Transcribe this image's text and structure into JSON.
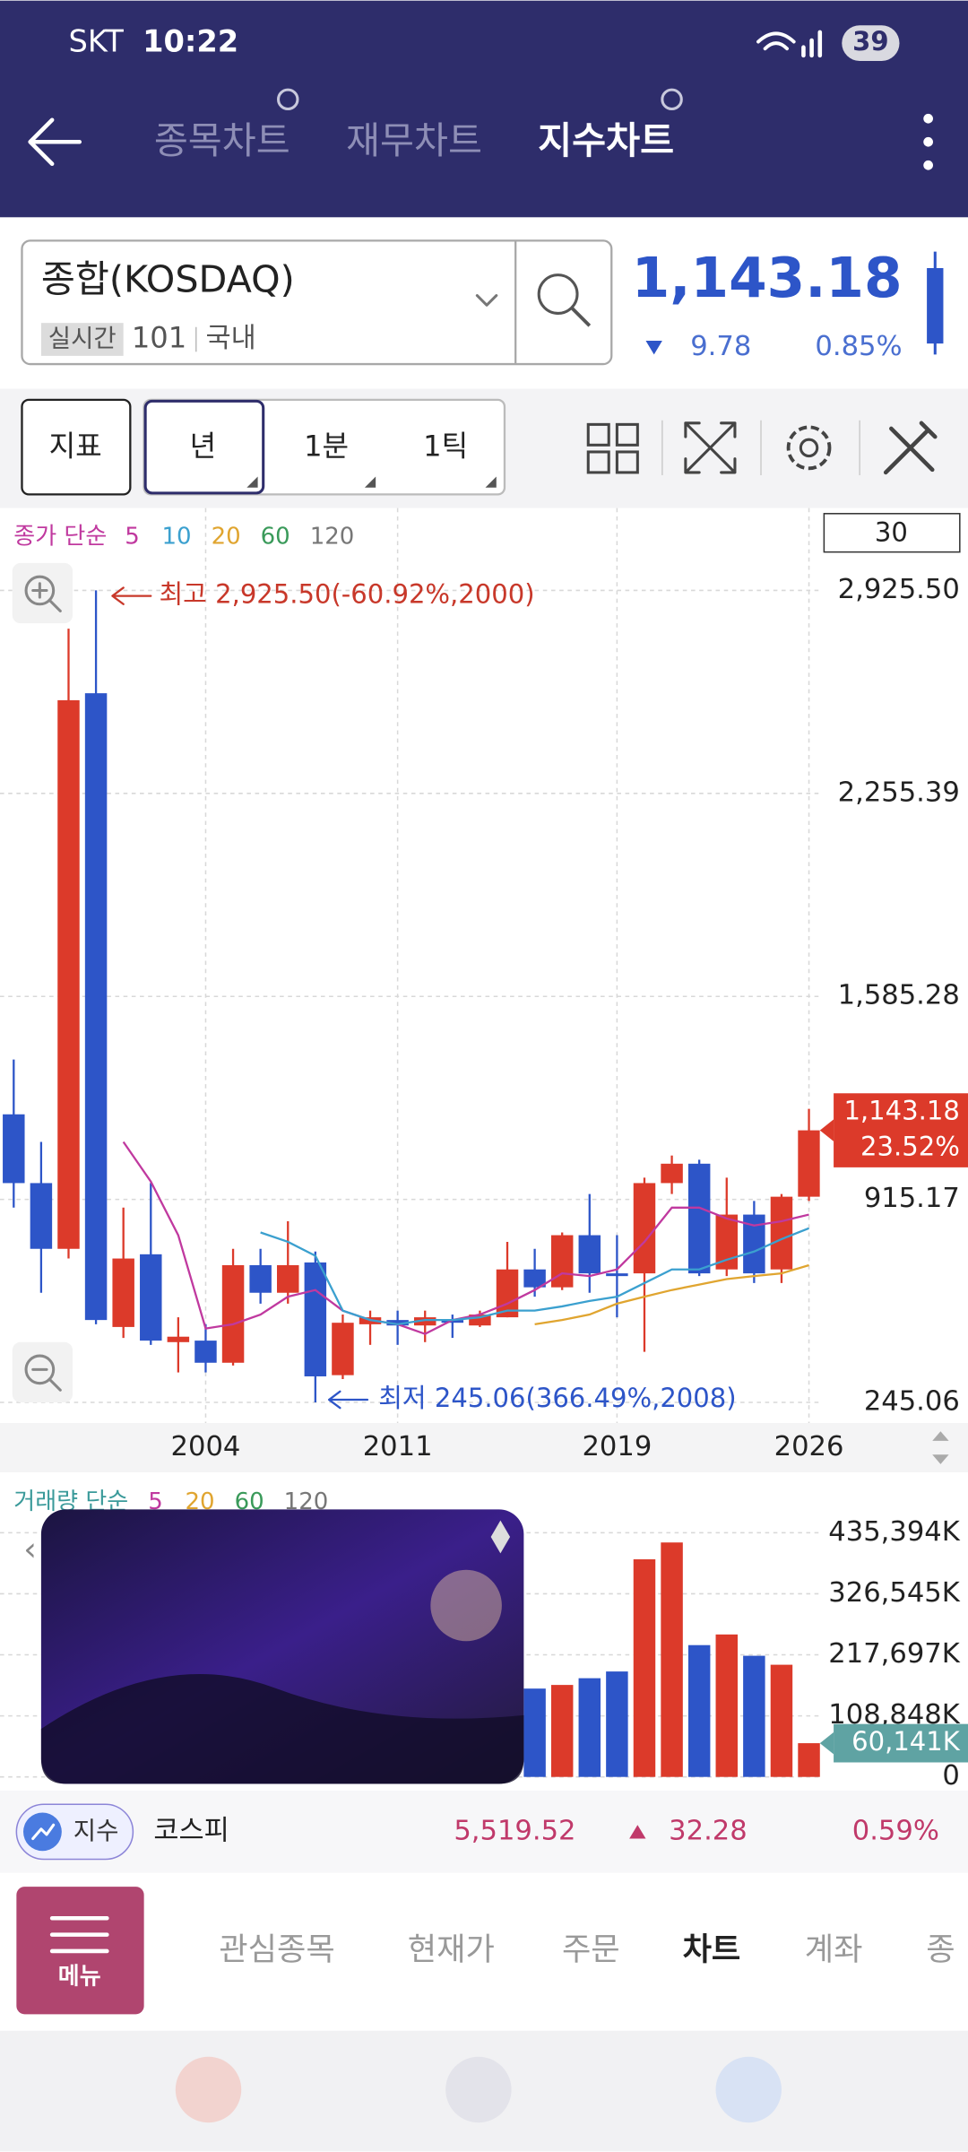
{
  "status_bar": {
    "carrier": "SKT",
    "time": "10:22",
    "battery": "39"
  },
  "nav": {
    "tabs": [
      "종목차트",
      "재무차트",
      "지수차트"
    ]
  },
  "quote": {
    "name": "종합(KOSDAQ)",
    "tag": "실시간",
    "code": "101",
    "market": "국내",
    "price": "1,143.18",
    "change": "9.78",
    "change_pct": "0.85%"
  },
  "toolbar": {
    "buttons": [
      "지표",
      "년",
      "1분",
      "1틱"
    ],
    "count": "30"
  },
  "chart_data": {
    "type": "candlestick",
    "legend_title": "종가 단순",
    "categories": [
      null,
      null,
      null,
      null,
      null,
      null,
      null,
      "2004",
      null,
      null,
      null,
      null,
      null,
      null,
      "2011",
      null,
      null,
      null,
      null,
      null,
      null,
      null,
      "2019",
      null,
      null,
      null,
      null,
      null,
      null,
      "2026"
    ],
    "open": [
      1196,
      969,
      752,
      2586,
      494,
      734,
      444,
      449,
      376,
      698,
      607,
      707,
      335,
      503,
      517,
      499,
      517,
      499,
      526,
      684,
      625,
      797,
      671,
      671,
      969,
      1033,
      684,
      865,
      684,
      924
    ],
    "high": [
      1377,
      1105,
      2799,
      2925.5,
      888,
      969,
      526,
      503,
      752,
      752,
      843,
      743,
      535,
      548,
      548,
      548,
      535,
      548,
      775,
      752,
      806,
      933,
      797,
      987,
      1060,
      1046,
      987,
      910,
      933,
      1214
    ],
    "low": [
      888,
      607,
      720,
      503,
      458,
      435,
      344,
      344,
      367,
      571,
      571,
      245.06,
      322,
      435,
      435,
      444,
      458,
      494,
      526,
      594,
      616,
      607,
      526,
      412,
      933,
      662,
      662,
      639,
      639,
      910
    ],
    "close": [
      969,
      752,
      2563,
      517,
      720,
      449,
      462,
      376,
      698,
      607,
      698,
      331,
      508,
      526,
      499,
      526,
      508,
      535,
      684,
      625,
      797,
      671,
      662,
      969,
      1033,
      671,
      865,
      671,
      924,
      1143.18
    ],
    "value_labels": [
      null,
      null,
      null,
      null,
      null,
      null,
      null,
      null,
      null,
      null,
      null,
      null,
      null,
      null,
      null,
      null,
      null,
      null,
      null,
      null,
      null,
      null,
      null,
      null,
      null,
      null,
      null,
      null,
      null,
      "1,143.18"
    ],
    "last_change": "23.52%",
    "up_color": "#dc3a2a",
    "down_color": "#2d55c8",
    "series": [
      {
        "name": "5",
        "color": "#c0399f",
        "values": [
          null,
          null,
          null,
          null,
          1105,
          974,
          797,
          489,
          503,
          535,
          594,
          616,
          548,
          517,
          503,
          471,
          517,
          535,
          571,
          616,
          671,
          662,
          684,
          775,
          888,
          888,
          852,
          829,
          843,
          865
        ]
      },
      {
        "name": "10",
        "color": "#3ba0cf",
        "values": [
          null,
          null,
          null,
          null,
          null,
          null,
          null,
          null,
          null,
          806,
          775,
          729,
          548,
          517,
          503,
          517,
          517,
          526,
          548,
          548,
          562,
          580,
          594,
          639,
          684,
          684,
          716,
          743,
          784,
          820
        ]
      },
      {
        "name": "20",
        "color": "#e0a530",
        "values": [
          null,
          null,
          null,
          null,
          null,
          null,
          null,
          null,
          null,
          null,
          null,
          null,
          null,
          null,
          null,
          null,
          null,
          null,
          null,
          503,
          517,
          535,
          571,
          594,
          616,
          634,
          652,
          662,
          671,
          698
        ]
      },
      {
        "name": "60",
        "color": "#3a9a5a"
      },
      {
        "name": "120",
        "color": "#777777"
      }
    ],
    "ylim": [
      186,
      3188
    ],
    "yticks": [
      {
        "value": 2925.5,
        "label": "2,925.50"
      },
      {
        "value": 2255.39,
        "label": "2,255.39"
      },
      {
        "value": 1585.28,
        "label": "1,585.28"
      },
      915.17,
      245.06
    ],
    "grid": true,
    "annotations": {
      "max": "최고 2,925.50(-60.92%,2000)",
      "min": "최저 245.06(366.49%,2008)"
    },
    "volume": {
      "legend_title": "거래량 단순",
      "legend": [
        {
          "name": "5",
          "color": "#c0399f"
        },
        {
          "name": "20",
          "color": "#e0a530"
        },
        {
          "name": "60",
          "color": "#3a9a5a"
        },
        {
          "name": "120",
          "color": "#777777"
        }
      ],
      "values": [
        null,
        null,
        null,
        null,
        null,
        null,
        null,
        null,
        null,
        null,
        null,
        null,
        null,
        null,
        null,
        null,
        null,
        null,
        null,
        157500,
        164000,
        176000,
        188000,
        388000,
        418000,
        235000,
        254000,
        216000,
        200000,
        60141
      ],
      "value_labels": [
        null,
        null,
        null,
        null,
        null,
        null,
        null,
        null,
        null,
        null,
        null,
        null,
        null,
        null,
        null,
        null,
        null,
        null,
        null,
        null,
        null,
        null,
        null,
        null,
        null,
        null,
        null,
        null,
        null,
        "60,141K"
      ],
      "ylim": [
        0,
        494000
      ],
      "yticks": [
        {
          "value": 435394,
          "label": "435,394K"
        },
        {
          "value": 326545,
          "label": "326,545K"
        },
        {
          "value": 217697,
          "label": "217,697K"
        },
        {
          "value": 108848,
          "label": "108,848K"
        },
        0
      ]
    }
  },
  "ticker": {
    "badge": "지수",
    "name": "코스피",
    "price": "5,519.52",
    "change": "32.28",
    "change_pct": "0.59%"
  },
  "bottom_nav": {
    "menu": "메뉴",
    "tabs": [
      "관심종목",
      "현재가",
      "주문",
      "차트",
      "계좌",
      "종"
    ]
  }
}
